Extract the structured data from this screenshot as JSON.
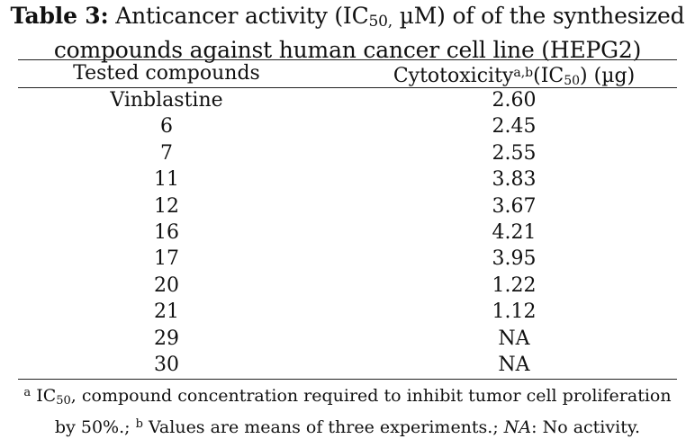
{
  "caption": {
    "label": "Table 3:",
    "line1_text": " Anticancer activity (IC",
    "line1_sub": "50,",
    "line1_end": " µM) of of the synthesized",
    "line2": "compounds against human cancer cell line (HEPG2)"
  },
  "header": {
    "col_compounds": "Tested compounds",
    "col_cytotox": "Cytotoxicity",
    "col_cytotox_sup": "a,b",
    "col_cytotox_mid": "(IC",
    "col_cytotox_sub": "50",
    "col_cytotox_end": ") (µg)"
  },
  "rows": [
    {
      "compound": "Vinblastine",
      "value": "2.60"
    },
    {
      "compound": "6",
      "value": "2.45"
    },
    {
      "compound": "7",
      "value": "2.55"
    },
    {
      "compound": "11",
      "value": "3.83"
    },
    {
      "compound": "12",
      "value": "3.67"
    },
    {
      "compound": "16",
      "value": "4.21"
    },
    {
      "compound": "17",
      "value": "3.95"
    },
    {
      "compound": "20",
      "value": "1.22"
    },
    {
      "compound": "21",
      "value": "1.12"
    },
    {
      "compound": "29",
      "value": "NA"
    },
    {
      "compound": "30",
      "value": "NA"
    }
  ],
  "footnote": {
    "a_mark": "a",
    "a_text_pre": " IC",
    "a_text_sub": "50",
    "a_text_post": ", compound concentration required to inhibit tumor cell proliferation",
    "line2_pre": "by 50%.; ",
    "b_mark": "b",
    "b_text": " Values are means of three experiments.; ",
    "na_label": "NA",
    "na_text": ": No activity."
  }
}
